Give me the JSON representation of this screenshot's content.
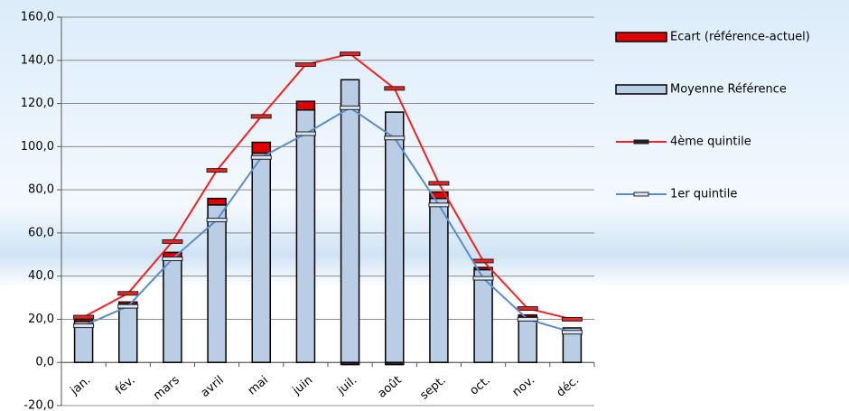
{
  "chart_data": {
    "type": "bar_line",
    "categories": [
      "jan.",
      "fév.",
      "mars",
      "avril",
      "mai",
      "juin",
      "juil.",
      "août",
      "sept.",
      "oct.",
      "nov.",
      "déc."
    ],
    "series": [
      {
        "name": "Ecart (référence-actuel)",
        "color": "#e00000",
        "kind": "stack",
        "values": [
          1,
          1,
          3,
          3,
          5,
          4,
          -1,
          -1,
          3,
          1,
          1,
          0
        ]
      },
      {
        "name": "Moyenne Référence",
        "color": "#b9cde5",
        "kind": "bar",
        "values": [
          19,
          27,
          48,
          73,
          97,
          117,
          131,
          116,
          76,
          43,
          21,
          16
        ]
      },
      {
        "name": "4ème quintile",
        "color": "#ee2222",
        "kind": "line",
        "values": [
          21,
          32,
          56,
          89,
          114,
          138,
          143,
          127,
          83,
          47,
          25,
          20
        ]
      },
      {
        "name": "1er quintile",
        "color": "#5b8ccc",
        "kind": "line",
        "values": [
          17,
          26,
          48,
          66,
          95,
          106,
          118,
          104,
          73,
          39,
          20,
          14
        ]
      }
    ],
    "ylim": [
      -20,
      160
    ],
    "yticks": [
      {
        "value": -20,
        "label": "-20,0"
      },
      {
        "value": 0,
        "label": "0,0"
      },
      {
        "value": 20,
        "label": "20,0"
      },
      {
        "value": 40,
        "label": "40,0"
      },
      {
        "value": 60,
        "label": "60,0"
      },
      {
        "value": 80,
        "label": "80,0"
      },
      {
        "value": 100,
        "label": "100,0"
      },
      {
        "value": 120,
        "label": "120,0"
      },
      {
        "value": 140,
        "label": "140,0"
      },
      {
        "value": 160,
        "label": "160,0"
      }
    ],
    "grid": true
  }
}
